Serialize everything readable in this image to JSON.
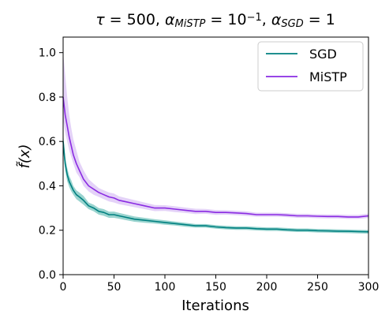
{
  "chart_data": {
    "type": "line",
    "title_parts": [
      {
        "text": "τ",
        "italic": true
      },
      {
        "text": " = 500, "
      },
      {
        "text": "α",
        "italic": true
      },
      {
        "text": "MiSTP",
        "sub": true,
        "italic": true
      },
      {
        "text": " = 10"
      },
      {
        "text": "−1",
        "sup": true
      },
      {
        "text": ", "
      },
      {
        "text": "α",
        "italic": true
      },
      {
        "text": "SGD",
        "sub": true,
        "italic": true
      },
      {
        "text": " = 1"
      }
    ],
    "xlabel": "Iterations",
    "ylabel": "f̃(x)",
    "xlim": [
      0,
      300
    ],
    "ylim": [
      0,
      1.07
    ],
    "xticks": [
      0,
      50,
      100,
      150,
      200,
      250,
      300
    ],
    "yticks": [
      0.0,
      0.2,
      0.4,
      0.6,
      0.8,
      1.0
    ],
    "xtick_labels": [
      "0",
      "50",
      "100",
      "150",
      "200",
      "250",
      "300"
    ],
    "ytick_labels": [
      "0.0",
      "0.2",
      "0.4",
      "0.6",
      "0.8",
      "1.0"
    ],
    "grid": false,
    "legend_position": "top-right",
    "series": [
      {
        "name": "SGD",
        "color": "#008080",
        "band_color": "#6fc2bb",
        "x": [
          0,
          2,
          4,
          6,
          8,
          10,
          13,
          16,
          20,
          25,
          30,
          35,
          40,
          45,
          50,
          55,
          60,
          70,
          80,
          90,
          100,
          110,
          120,
          130,
          140,
          150,
          160,
          170,
          180,
          190,
          200,
          210,
          220,
          230,
          240,
          250,
          260,
          270,
          280,
          290,
          300
        ],
        "y": [
          0.6,
          0.5,
          0.45,
          0.42,
          0.4,
          0.38,
          0.36,
          0.35,
          0.335,
          0.31,
          0.3,
          0.285,
          0.28,
          0.27,
          0.27,
          0.265,
          0.26,
          0.25,
          0.245,
          0.24,
          0.235,
          0.23,
          0.225,
          0.22,
          0.22,
          0.215,
          0.212,
          0.21,
          0.21,
          0.207,
          0.205,
          0.205,
          0.202,
          0.2,
          0.2,
          0.198,
          0.197,
          0.196,
          0.195,
          0.194,
          0.193
        ],
        "lower": [
          0.56,
          0.47,
          0.42,
          0.395,
          0.375,
          0.36,
          0.34,
          0.33,
          0.315,
          0.295,
          0.285,
          0.27,
          0.265,
          0.256,
          0.256,
          0.252,
          0.247,
          0.238,
          0.234,
          0.23,
          0.225,
          0.221,
          0.216,
          0.212,
          0.212,
          0.207,
          0.204,
          0.202,
          0.202,
          0.199,
          0.197,
          0.197,
          0.194,
          0.192,
          0.192,
          0.19,
          0.189,
          0.188,
          0.187,
          0.186,
          0.185
        ],
        "upper": [
          0.64,
          0.53,
          0.48,
          0.445,
          0.425,
          0.4,
          0.38,
          0.37,
          0.355,
          0.325,
          0.315,
          0.3,
          0.295,
          0.284,
          0.284,
          0.278,
          0.273,
          0.262,
          0.256,
          0.25,
          0.245,
          0.239,
          0.234,
          0.228,
          0.228,
          0.223,
          0.22,
          0.218,
          0.218,
          0.215,
          0.213,
          0.213,
          0.21,
          0.208,
          0.208,
          0.206,
          0.205,
          0.204,
          0.203,
          0.202,
          0.201
        ]
      },
      {
        "name": "MiSTP",
        "color": "#8a2be2",
        "band_color": "#d8bff5",
        "x": [
          0,
          2,
          4,
          6,
          8,
          10,
          13,
          16,
          20,
          25,
          30,
          35,
          40,
          45,
          50,
          55,
          60,
          70,
          80,
          90,
          100,
          110,
          120,
          130,
          140,
          150,
          160,
          170,
          180,
          190,
          200,
          210,
          220,
          230,
          240,
          250,
          260,
          270,
          280,
          290,
          300
        ],
        "y": [
          0.8,
          0.72,
          0.67,
          0.62,
          0.58,
          0.54,
          0.5,
          0.47,
          0.43,
          0.4,
          0.385,
          0.37,
          0.36,
          0.35,
          0.345,
          0.335,
          0.33,
          0.32,
          0.31,
          0.3,
          0.3,
          0.295,
          0.29,
          0.285,
          0.285,
          0.28,
          0.28,
          0.278,
          0.275,
          0.27,
          0.27,
          0.27,
          0.268,
          0.265,
          0.265,
          0.263,
          0.262,
          0.262,
          0.26,
          0.26,
          0.265
        ],
        "lower": [
          0.7,
          0.64,
          0.6,
          0.56,
          0.53,
          0.5,
          0.46,
          0.44,
          0.4,
          0.375,
          0.36,
          0.35,
          0.34,
          0.33,
          0.325,
          0.317,
          0.313,
          0.304,
          0.295,
          0.286,
          0.287,
          0.282,
          0.278,
          0.273,
          0.274,
          0.269,
          0.27,
          0.268,
          0.265,
          0.261,
          0.261,
          0.261,
          0.259,
          0.256,
          0.256,
          0.254,
          0.253,
          0.253,
          0.251,
          0.251,
          0.255
        ],
        "upper": [
          1.0,
          0.9,
          0.8,
          0.72,
          0.66,
          0.61,
          0.56,
          0.51,
          0.47,
          0.43,
          0.41,
          0.39,
          0.38,
          0.37,
          0.365,
          0.353,
          0.347,
          0.336,
          0.325,
          0.314,
          0.313,
          0.308,
          0.302,
          0.297,
          0.296,
          0.291,
          0.29,
          0.288,
          0.285,
          0.279,
          0.279,
          0.279,
          0.277,
          0.274,
          0.274,
          0.272,
          0.271,
          0.271,
          0.269,
          0.269,
          0.275
        ]
      }
    ]
  }
}
